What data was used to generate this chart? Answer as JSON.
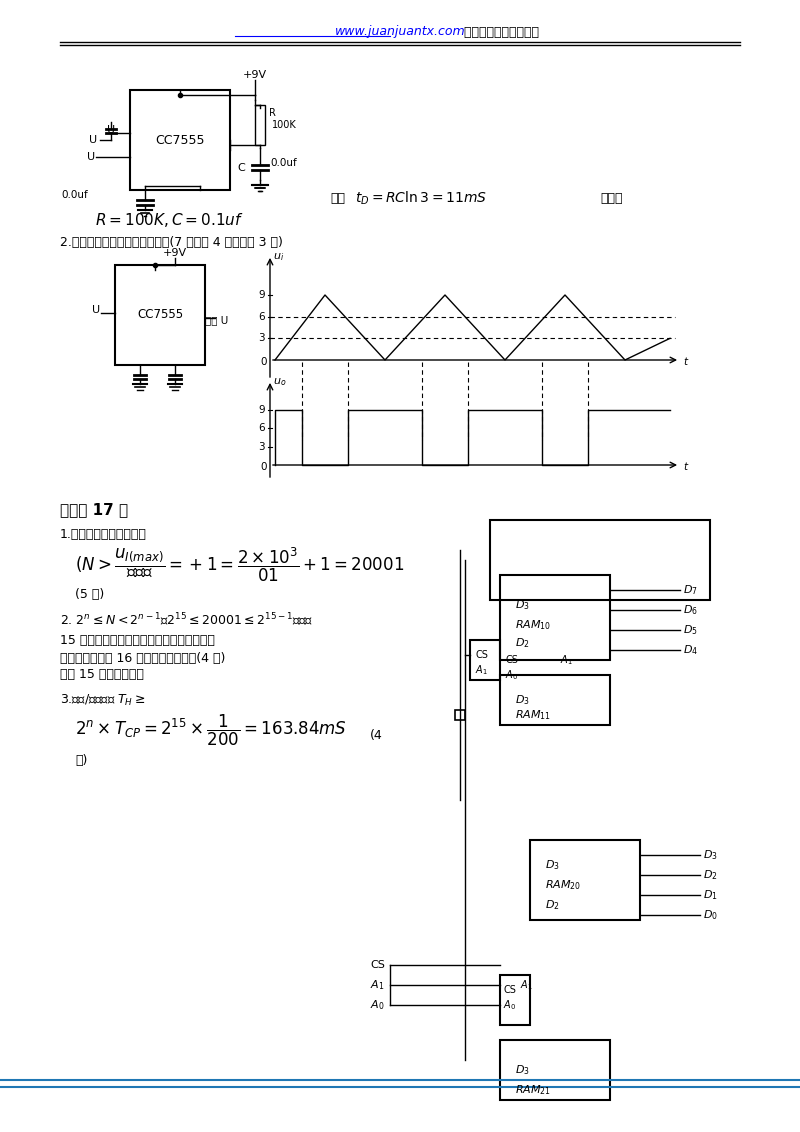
{
  "bg_color": "#ffffff",
  "header_url": "www.juanjuantx.com",
  "header_text": " 所有试卷资料免费下载",
  "section1_title": "因为",
  "formula1": "$t_D = RC\\ln 3 = 11mS$",
  "suoyixuan": "所以选",
  "formula2": "$R = 100K, C = 0.1uf$",
  "section2_label": "2.斯密特触发器如图，波形如图(7 分，图 4 分，波形 3 分)",
  "section6_label": "六、共 17 分",
  "s6_1": "1.计数器的总容量应大于",
  "s6_formula1": "$(N > \\dfrac{u_{I(max)}}{分辨率} = +1 = \\dfrac{2\\times10^3}{01} +1 = 20001$",
  "s6_5fen": "(5 分)",
  "s6_2": "2. $2^n \\leq N < 2^{n-1}$，$2^{15} \\leq 20001 \\leq 2^{15-1}$，故要",
  "s6_2b": "15 位二进制计数器，如果包括控制开关所用",
  "s6_2c": "的一位时，应有 16 位二进制计数器。(4 分)",
  "s6_2d": "回答 15 位可以算对。",
  "s6_3": "3.采样/保持时间 $T_H\\geq$",
  "s6_3formula": "$2^n \\times T_{CP} = 2^{15} \\times \\dfrac{1}{200} = 163.84mS$",
  "s6_4fen": "(4",
  "s6_fen": "分)"
}
